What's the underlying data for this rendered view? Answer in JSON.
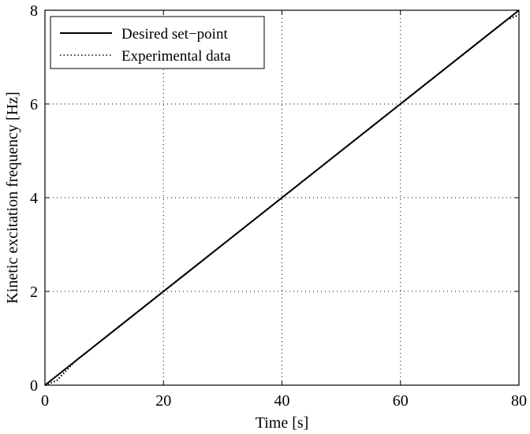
{
  "chart_data": {
    "type": "line",
    "title": "",
    "xlabel": "Time [s]",
    "ylabel": "Kinetic excitation frequency [Hz]",
    "xlim": [
      0,
      80
    ],
    "ylim": [
      0,
      8
    ],
    "xticks": [
      0,
      20,
      40,
      60,
      80
    ],
    "yticks": [
      0,
      2,
      4,
      6,
      8
    ],
    "grid": true,
    "legend_position": "top-left",
    "series": [
      {
        "name": "Desired set−point",
        "style": "solid",
        "color": "#000000",
        "x": [
          0,
          80
        ],
        "y": [
          0,
          8
        ]
      },
      {
        "name": "Experimental data",
        "style": "dotted",
        "color": "#000000",
        "x": [
          0,
          2,
          5,
          8,
          10,
          12,
          15,
          18,
          20,
          22,
          25,
          28,
          30,
          32,
          35,
          38,
          40,
          42,
          45,
          48,
          50,
          52,
          55,
          58,
          60,
          62,
          65,
          68,
          70,
          72,
          75,
          78,
          80
        ],
        "y": [
          0.0,
          0.1,
          0.5,
          0.8,
          1.0,
          1.2,
          1.5,
          1.8,
          2.0,
          2.2,
          2.5,
          2.8,
          3.0,
          3.2,
          3.5,
          3.8,
          4.0,
          4.2,
          4.5,
          4.8,
          5.0,
          5.2,
          5.5,
          5.8,
          6.0,
          6.2,
          6.5,
          6.8,
          7.0,
          7.2,
          7.5,
          7.8,
          7.9
        ]
      }
    ]
  }
}
